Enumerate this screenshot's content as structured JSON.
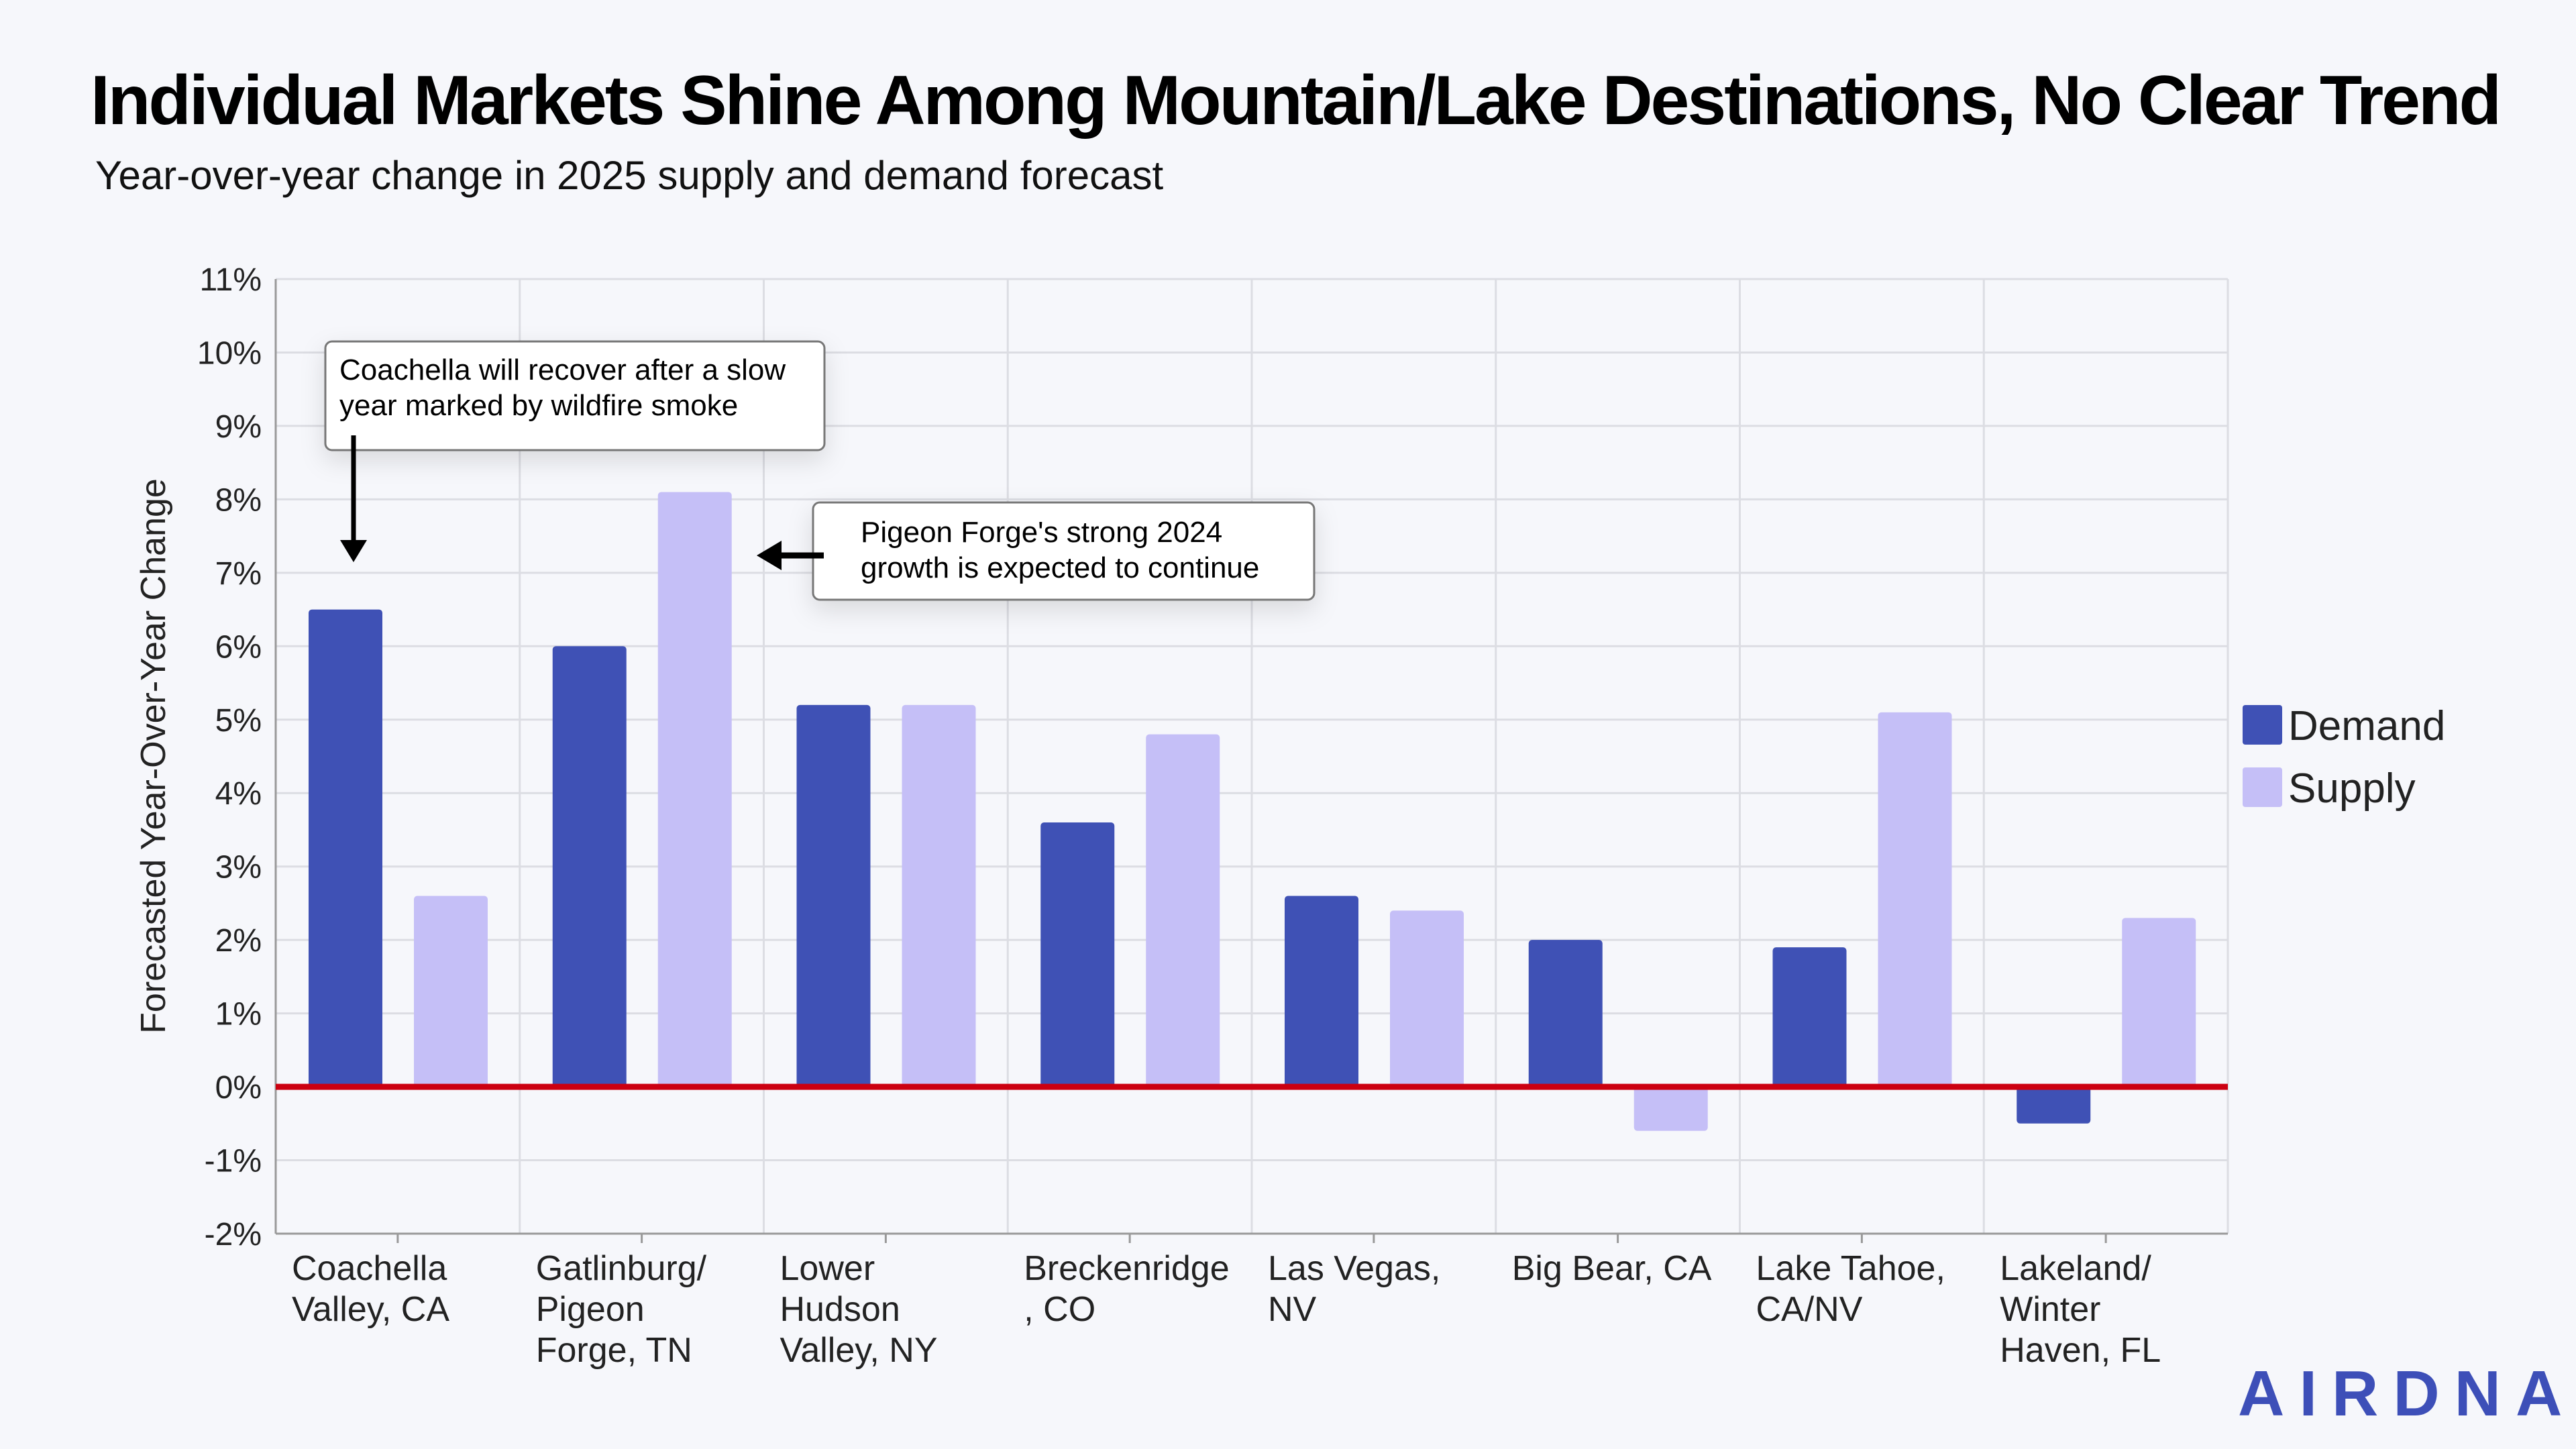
{
  "chart_data": {
    "type": "bar",
    "title": "Individual Markets Shine Among Mountain/Lake Destinations, No Clear Trend",
    "subtitle": "Year-over-year change in 2025 supply and demand forecast",
    "ylabel": "Forecasted Year-Over-Year Change",
    "xlabel": "",
    "ylim": [
      -2,
      11
    ],
    "yticks": [
      "-2%",
      "-1%",
      "0%",
      "1%",
      "2%",
      "3%",
      "4%",
      "5%",
      "6%",
      "7%",
      "8%",
      "9%",
      "10%",
      "11%"
    ],
    "grid": true,
    "legend_position": "right",
    "categories": [
      [
        "Coachella",
        "Valley, CA"
      ],
      [
        "Gatlinburg/",
        "Pigeon",
        "Forge, TN"
      ],
      [
        "Lower",
        "Hudson",
        "Valley, NY"
      ],
      [
        "Breckenridge",
        ", CO"
      ],
      [
        "Las Vegas,",
        "NV"
      ],
      [
        "Big Bear, CA"
      ],
      [
        "Lake Tahoe,",
        "CA/NV"
      ],
      [
        "Lakeland/",
        "Winter",
        "Haven, FL"
      ]
    ],
    "series": [
      {
        "name": "Demand",
        "color": "#3f51b5",
        "values": [
          6.5,
          6.0,
          5.2,
          3.6,
          2.6,
          2.0,
          1.9,
          -0.5
        ]
      },
      {
        "name": "Supply",
        "color": "#c5bff7",
        "values": [
          2.6,
          8.1,
          5.2,
          4.8,
          2.4,
          -0.6,
          5.1,
          2.3
        ]
      }
    ],
    "zero_line_color": "#cc0011",
    "annotations": [
      {
        "lines": [
          "Coachella will recover after a slow",
          "year marked by wildfire smoke"
        ],
        "target": "Coachella Valley, CA Demand"
      },
      {
        "lines": [
          "Pigeon Forge's strong 2024",
          "growth is expected to continue"
        ],
        "target": "Gatlinburg/Pigeon Forge, TN Supply"
      }
    ]
  },
  "logo": "AIRDNA"
}
